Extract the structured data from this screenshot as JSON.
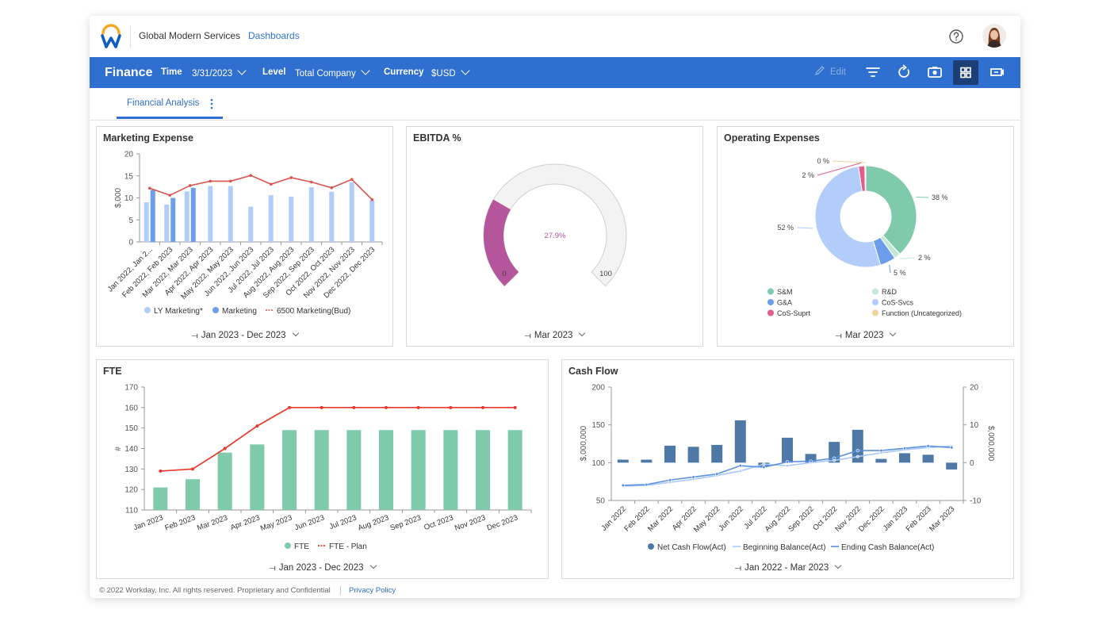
{
  "header": {
    "company": "Global Modern Services",
    "breadcrumb": "Dashboards"
  },
  "toolbar": {
    "title": "Finance",
    "time_label": "Time",
    "time_value": "3/31/2023",
    "level_label": "Level",
    "level_value": "Total Company",
    "currency_label": "Currency",
    "currency_value": "$USD",
    "edit_label": "Edit"
  },
  "tabs": [
    {
      "label": "Financial Analysis"
    }
  ],
  "panels": {
    "marketing": {
      "title": "Marketing Expense",
      "period": "Jan 2023 - Dec 2023"
    },
    "ebitda": {
      "title": "EBITDA %",
      "period": "Mar 2023"
    },
    "opex": {
      "title": "Operating Expenses",
      "period": "Mar 2023"
    },
    "fte": {
      "title": "FTE",
      "period": "Jan 2023 - Dec 2023"
    },
    "cashflow": {
      "title": "Cash Flow",
      "period": "Jan 2022 - Mar 2023"
    }
  },
  "footer": {
    "copyright": "© 2022 Workday, Inc. All rights reserved. Proprietary and Confidential",
    "privacy": "Privacy Policy"
  },
  "colors": {
    "brand_blue": "#2f6fcf",
    "active_icon_bg": "#1d3f78",
    "ly_bar": "#b3cdfa",
    "marketing_bar": "#6d9eeb",
    "budget_line": "#d9534f",
    "gauge_fill": "#b5559b",
    "fte_bar": "#7fcaaa",
    "fte_plan": "#e8382c",
    "cash_bar": "#4e79a7"
  },
  "chart_data": [
    {
      "type": "bar",
      "id": "marketing",
      "categories": [
        "Jan 2022, Jan 2...",
        "Feb 2022, Feb 2023",
        "Mar 2022, Mar 2023",
        "Apr 2022, Apr 2023",
        "May 2022, May 2023",
        "Jun 2022, Jun 2023",
        "Jul 2022, Jul 2023",
        "Aug 2022, Aug 2023",
        "Sep 2022, Sep 2023",
        "Oct 2022, Oct 2023",
        "Nov 2022, Nov 2023",
        "Dec 2022, Dec 2023"
      ],
      "series": [
        {
          "name": "LY Marketing*",
          "kind": "bar",
          "values": [
            9,
            8.5,
            11.5,
            12.7,
            12.7,
            8,
            10.6,
            10.3,
            12.4,
            11.4,
            13.5,
            9.4
          ]
        },
        {
          "name": "Marketing",
          "kind": "bar",
          "values": [
            11.8,
            10,
            12.3,
            null,
            null,
            null,
            null,
            null,
            null,
            null,
            null,
            null
          ]
        },
        {
          "name": "6500 Marketing(Bud)",
          "kind": "line",
          "values": [
            12.2,
            10.6,
            12.8,
            13.8,
            13.8,
            15.1,
            13.1,
            14.6,
            13.6,
            12.3,
            14.2,
            9.6
          ]
        }
      ],
      "ylabel": "$,000",
      "yticks": [
        0,
        5,
        10,
        15,
        20
      ],
      "ylim": [
        0,
        20
      ],
      "legend": "bottom"
    },
    {
      "type": "gauge",
      "id": "ebitda",
      "value": 27.9,
      "value_label": "27.9%",
      "min": 0,
      "max": 100
    },
    {
      "type": "pie",
      "id": "opex",
      "donut": true,
      "slices": [
        {
          "name": "S&M",
          "value": 38,
          "label": "38 %",
          "color": "#7fcaaa"
        },
        {
          "name": "R&D",
          "value": 2,
          "label": "2 %",
          "color": "#c3e8d8"
        },
        {
          "name": "G&A",
          "value": 5,
          "label": "5 %",
          "color": "#6d9eeb"
        },
        {
          "name": "CoS-Svcs",
          "value": 52,
          "label": "52 %",
          "color": "#b3cdfa"
        },
        {
          "name": "CoS-Suprt",
          "value": 2,
          "label": "2 %",
          "color": "#e35d8c"
        },
        {
          "name": "Function (Uncategorized)",
          "value": 0.3,
          "label": "0 %",
          "color": "#f2d49b"
        }
      ],
      "legend": "bottom"
    },
    {
      "type": "bar",
      "id": "fte",
      "categories": [
        "Jan 2023",
        "Feb 2023",
        "Mar 2023",
        "Apr 2023",
        "May 2023",
        "Jun 2023",
        "Jul 2023",
        "Aug 2023",
        "Sep 2023",
        "Oct 2023",
        "Nov 2023",
        "Dec 2023"
      ],
      "series": [
        {
          "name": "FTE",
          "kind": "bar",
          "values": [
            121,
            125,
            138,
            142,
            149,
            149,
            149,
            149,
            149,
            149,
            149,
            149
          ]
        },
        {
          "name": "FTE - Plan",
          "kind": "line",
          "values": [
            129,
            130,
            140,
            151,
            160,
            160,
            160,
            160,
            160,
            160,
            160,
            160
          ]
        }
      ],
      "ylabel": "#",
      "yticks": [
        110,
        120,
        130,
        140,
        150,
        160,
        170
      ],
      "ylim": [
        110,
        170
      ],
      "legend": "bottom"
    },
    {
      "type": "bar",
      "id": "cashflow",
      "categories": [
        "Jan 2022",
        "Feb 2022",
        "Mar 2022",
        "Apr 2022",
        "May 2022",
        "Jun 2022",
        "Jul 2022",
        "Aug 2022",
        "Sep 2022",
        "Oct 2022",
        "Nov 2022",
        "Dec 2022",
        "Jan 2023",
        "Feb 2023",
        "Mar 2023"
      ],
      "series": [
        {
          "name": "Net Cash Flow(Act)",
          "kind": "bar",
          "axis": "right",
          "values": [
            0.8,
            0.8,
            4.5,
            4.2,
            4.7,
            11.2,
            -1,
            6.6,
            2.3,
            5.5,
            8.7,
            1,
            2.5,
            2.1,
            -1.8
          ]
        },
        {
          "name": "Beginning Balance(Act)",
          "kind": "line",
          "axis": "left",
          "values": [
            69,
            70,
            74,
            78,
            83,
            89,
            98,
            96,
            100,
            103,
            108,
            113,
            117,
            120,
            122
          ]
        },
        {
          "name": "Ending Cash Balance(Act)",
          "kind": "line",
          "axis": "left",
          "values": [
            70,
            71,
            77,
            81,
            85,
            96,
            94,
            101,
            102,
            106,
            116,
            116,
            119,
            122,
            120
          ]
        }
      ],
      "ylabel": "$,000,000",
      "y2label": "$,000,000",
      "yticks": [
        50,
        100,
        150,
        200
      ],
      "ylim": [
        50,
        200
      ],
      "y2ticks": [
        -10,
        0,
        10,
        20
      ],
      "y2lim": [
        -10,
        20
      ],
      "legend": "bottom"
    }
  ]
}
